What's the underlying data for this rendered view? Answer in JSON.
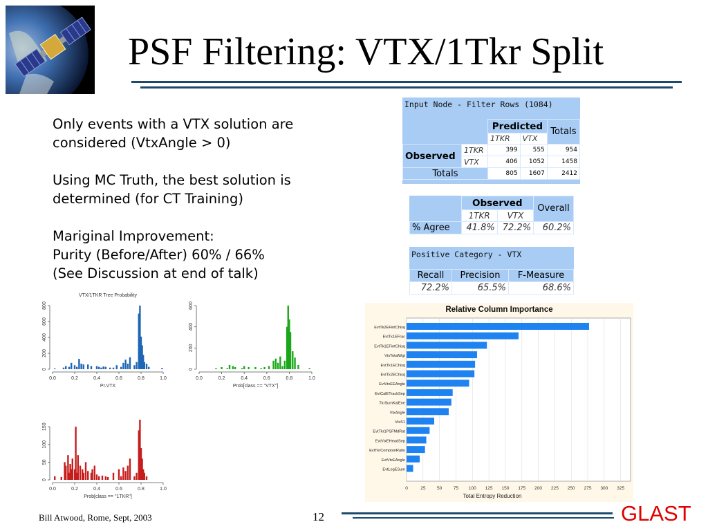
{
  "title": "PSF Filtering: VTX/1Tkr Split",
  "body": {
    "p1": [
      "Only events with a VTX solution are",
      "considered (VtxAngle > 0)"
    ],
    "p2": [
      "Using MC Truth, the best solution is",
      "determined (for CT Training)"
    ],
    "p3": [
      "Mariginal Improvement:",
      "Purity (Before/After)  60% / 66%",
      "(See Discussion at end of talk)"
    ]
  },
  "confusion_table": {
    "header": "Input Node - Filter Rows (1084)",
    "predicted_label": "Predicted",
    "totals_label": "Totals",
    "observed_label": "Observed",
    "col_labels": [
      "1TKR",
      "VTX"
    ],
    "rows": [
      {
        "label": "1TKR",
        "values": [
          "399",
          "555",
          "954"
        ]
      },
      {
        "label": "VTX",
        "values": [
          "406",
          "1052",
          "1458"
        ]
      }
    ],
    "totals_row": {
      "label": "Totals",
      "values": [
        "805",
        "1607",
        "2412"
      ]
    }
  },
  "agree_table": {
    "observed_label": "Observed",
    "overall_label": "Overall",
    "col_labels": [
      "1TKR",
      "VTX"
    ],
    "row_label": "% Agree",
    "values": [
      "41.8%",
      "72.2%",
      "60.2%"
    ]
  },
  "positive_table": {
    "header": "Positive Category - VTX",
    "columns": [
      "Recall",
      "Precision",
      "F-Measure"
    ],
    "values": [
      "72.2%",
      "65.5%",
      "68.6%"
    ]
  },
  "chart_data": [
    {
      "type": "bar",
      "title": "VTX/1TKR Tree Probability",
      "xlabel": "Pr.VTX",
      "ylabel": "",
      "xticks": [
        "0.0",
        "0.2",
        "0.4",
        "0.6",
        "0.8",
        "1.0"
      ],
      "yticks": [
        "0",
        "200",
        "400",
        "600",
        "800"
      ],
      "xlim": [
        0,
        1
      ],
      "ylim": [
        0,
        800
      ],
      "color": "#1f66b5",
      "x": [
        0.02,
        0.1,
        0.12,
        0.15,
        0.17,
        0.2,
        0.22,
        0.24,
        0.26,
        0.28,
        0.32,
        0.35,
        0.4,
        0.42,
        0.44,
        0.46,
        0.48,
        0.52,
        0.55,
        0.58,
        0.62,
        0.64,
        0.66,
        0.68,
        0.7,
        0.74,
        0.76,
        0.78,
        0.79,
        0.8,
        0.81,
        0.82,
        0.83,
        0.85,
        0.87,
        0.99
      ],
      "values": [
        10,
        20,
        40,
        30,
        80,
        50,
        30,
        130,
        70,
        60,
        60,
        40,
        40,
        30,
        20,
        35,
        30,
        20,
        20,
        50,
        30,
        80,
        120,
        70,
        150,
        50,
        90,
        700,
        800,
        410,
        300,
        180,
        90,
        70,
        30,
        15
      ]
    },
    {
      "type": "bar",
      "title": "",
      "xlabel": "Prob[class == \"VTX\"]",
      "ylabel": "",
      "xticks": [
        "0.0",
        "0.2",
        "0.4",
        "0.6",
        "0.8",
        "1.0"
      ],
      "yticks": [
        "0",
        "200",
        "400",
        "600"
      ],
      "xlim": [
        0,
        1
      ],
      "ylim": [
        0,
        600
      ],
      "color": "#1aa81a",
      "x": [
        0.15,
        0.2,
        0.25,
        0.27,
        0.3,
        0.32,
        0.38,
        0.4,
        0.44,
        0.5,
        0.55,
        0.58,
        0.62,
        0.66,
        0.68,
        0.7,
        0.72,
        0.74,
        0.76,
        0.78,
        0.79,
        0.8,
        0.81,
        0.83,
        0.85,
        0.88,
        0.98
      ],
      "values": [
        10,
        20,
        10,
        40,
        30,
        20,
        10,
        30,
        20,
        20,
        10,
        20,
        30,
        80,
        100,
        60,
        120,
        30,
        80,
        400,
        630,
        470,
        350,
        170,
        110,
        40,
        10
      ]
    },
    {
      "type": "bar",
      "title": "",
      "xlabel": "Prob[class == \"1TKR\"]",
      "ylabel": "",
      "xticks": [
        "0.0",
        "0.2",
        "0.4",
        "0.6",
        "0.8",
        "1.0"
      ],
      "yticks": [
        "0",
        "50",
        "100",
        "150"
      ],
      "xlim": [
        0,
        1
      ],
      "ylim": [
        0,
        170
      ],
      "color": "#c61d1d",
      "x": [
        0.02,
        0.08,
        0.11,
        0.12,
        0.14,
        0.15,
        0.16,
        0.17,
        0.18,
        0.2,
        0.21,
        0.22,
        0.23,
        0.25,
        0.27,
        0.28,
        0.3,
        0.32,
        0.35,
        0.36,
        0.38,
        0.4,
        0.42,
        0.45,
        0.48,
        0.5,
        0.55,
        0.6,
        0.62,
        0.64,
        0.66,
        0.68,
        0.7,
        0.74,
        0.76,
        0.78,
        0.79,
        0.8,
        0.81,
        0.82,
        0.83,
        0.85
      ],
      "values": [
        10,
        8,
        50,
        40,
        70,
        20,
        45,
        30,
        60,
        30,
        150,
        20,
        70,
        40,
        30,
        20,
        50,
        25,
        20,
        30,
        40,
        15,
        10,
        12,
        10,
        8,
        20,
        30,
        10,
        35,
        25,
        40,
        60,
        10,
        20,
        140,
        170,
        90,
        60,
        30,
        20,
        10
      ]
    },
    {
      "type": "bar",
      "orientation": "horizontal",
      "title": "Relative Column Importance",
      "xlabel": "Total Entropy Reduction",
      "ylabel": "",
      "xlim": [
        0,
        340
      ],
      "xticks": [
        "0",
        "25",
        "50",
        "75",
        "100",
        "125",
        "150",
        "175",
        "200",
        "225",
        "250",
        "275",
        "300",
        "325"
      ],
      "color": "#1e82f0",
      "categories": [
        "EvtTk2EFintChisq",
        "EvtTk1EFrac",
        "EvtTk1EFintChisq",
        "VtxTotalWgt",
        "EvtTk1EChisq",
        "EvtTk2EChisq",
        "EvtVtxEEAngle",
        "EvtCalETrackSep",
        "TkrSumKalEne",
        "VtxAngle",
        "VtxS1",
        "EvtTkr1PSFMdRat",
        "EvtVtxEHeadSep",
        "EvtTkrComptonRatio",
        "EvtVtxEAngle",
        "EvtLogESum"
      ],
      "values": [
        277,
        170,
        122,
        107,
        104,
        103,
        95,
        70,
        68,
        64,
        42,
        35,
        30,
        28,
        20,
        10
      ]
    }
  ],
  "footer": {
    "author": "Bill Atwood,  Rome, Sept, 2003",
    "page": "12",
    "brand": "GLAST"
  },
  "colors": {
    "rule": "#1d4a6b",
    "table_panel": "#a8ccf4",
    "brand": "#e00000",
    "chart_bg": "#fff7e8"
  },
  "icons": {
    "logo": "satellite-earth-icon"
  }
}
